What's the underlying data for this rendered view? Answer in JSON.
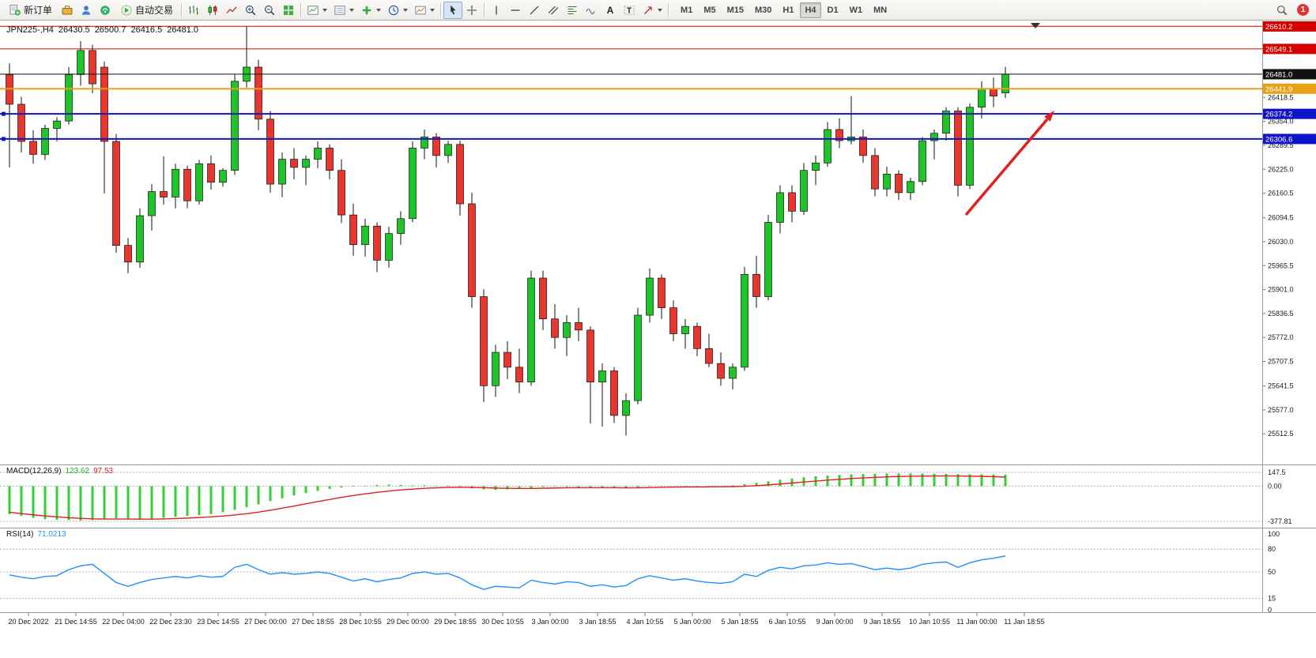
{
  "toolbar": {
    "new_order_label": "新订单",
    "auto_trading_label": "自动交易",
    "notification_count": "1",
    "timeframes": [
      "M1",
      "M5",
      "M15",
      "M30",
      "H1",
      "H4",
      "D1",
      "W1",
      "MN"
    ],
    "active_timeframe": "H4",
    "items": [
      {
        "kind": "text",
        "name": "new-order-button",
        "icon": "new-order",
        "label": "新订单"
      },
      {
        "kind": "icon",
        "name": "market-watch-button",
        "icon": "market-watch"
      },
      {
        "kind": "icon",
        "name": "community-button",
        "icon": "community"
      },
      {
        "kind": "icon",
        "name": "sounds-button",
        "icon": "sounds"
      },
      {
        "kind": "text",
        "name": "auto-trading-button",
        "icon": "autotrade",
        "label": "自动交易"
      },
      {
        "kind": "sep"
      },
      {
        "kind": "icon",
        "name": "bar-chart-mode-button",
        "icon": "bars"
      },
      {
        "kind": "icon",
        "name": "candle-chart-mode-button",
        "icon": "candles"
      },
      {
        "kind": "icon",
        "name": "line-chart-mode-button",
        "icon": "line"
      },
      {
        "kind": "icon",
        "name": "zoom-in-button",
        "icon": "zoom-in"
      },
      {
        "kind": "icon",
        "name": "zoom-out-button",
        "icon": "zoom-out"
      },
      {
        "kind": "icon",
        "name": "tile-windows-button",
        "icon": "tile"
      },
      {
        "kind": "sep"
      },
      {
        "kind": "icon",
        "name": "chart-list-button",
        "icon": "chart-a",
        "caret": true
      },
      {
        "kind": "icon",
        "name": "chart-grid-button",
        "icon": "chart-b",
        "caret": true
      },
      {
        "kind": "icon",
        "name": "add-indicator-button",
        "icon": "plus",
        "caret": true
      },
      {
        "kind": "icon",
        "name": "periods-button",
        "icon": "clock",
        "caret": true
      },
      {
        "kind": "icon",
        "name": "chart-snapshot-button",
        "icon": "snapshot",
        "caret": true
      },
      {
        "kind": "sep"
      },
      {
        "kind": "icon",
        "name": "cursor-button",
        "icon": "cursor",
        "active": true
      },
      {
        "kind": "icon",
        "name": "crosshair-button",
        "icon": "crosshair"
      },
      {
        "kind": "sep"
      },
      {
        "kind": "icon",
        "name": "vertical-line-button",
        "icon": "vline"
      },
      {
        "kind": "icon",
        "name": "horizontal-line-button",
        "icon": "hline"
      },
      {
        "kind": "icon",
        "name": "trendline-button",
        "icon": "trend"
      },
      {
        "kind": "icon",
        "name": "equidistant-channel-button",
        "icon": "channel"
      },
      {
        "kind": "icon",
        "name": "fibonacci-button",
        "icon": "fibo"
      },
      {
        "kind": "icon",
        "name": "waves-button",
        "icon": "waves"
      },
      {
        "kind": "icon",
        "name": "text-tool-button",
        "icon": "textA"
      },
      {
        "kind": "icon",
        "name": "label-tool-button",
        "icon": "labelT"
      },
      {
        "kind": "icon",
        "name": "arrows-tool-button",
        "icon": "arrowobj",
        "caret": true
      },
      {
        "kind": "sep"
      }
    ]
  },
  "chart": {
    "symbol_title": "JPN225-,H4",
    "ohlc": {
      "open": "26430.5",
      "high": "26500.7",
      "low": "26416.5",
      "close": "26481.0"
    },
    "arrow_color": "#e02020",
    "levels": [
      {
        "label": "26610.2",
        "price": 26610.2,
        "color": "#d40000",
        "width": 1,
        "handles": false
      },
      {
        "label": "26549.1",
        "price": 26549.1,
        "color": "#d40000",
        "width": 1,
        "handles": false
      },
      {
        "label": "26481.0",
        "price": 26481.0,
        "color": "#111111",
        "width": 1,
        "handles": false
      },
      {
        "label": "26441.9",
        "price": 26441.9,
        "color": "#e8a017",
        "width": 2,
        "handles": false
      },
      {
        "label": "26374.2",
        "price": 26374.2,
        "color": "#0f14c8",
        "width": 2,
        "handles": true
      },
      {
        "label": "26306.6",
        "price": 26306.6,
        "color": "#0f14c8",
        "width": 2,
        "handles": true
      }
    ]
  },
  "macd_panel": {
    "title": "MACD(12,26,9)",
    "value_main": "123.62",
    "value_signal": "97.53"
  },
  "rsi_panel": {
    "title": "RSI(14)",
    "value": "71.0213"
  },
  "chart_data": {
    "type": "candlestick",
    "symbol": "JPN225-",
    "timeframe": "H4",
    "ylim": [
      25430,
      26617
    ],
    "y_ticks": [
      "26418.5",
      "26354.0",
      "26289.5",
      "26225.0",
      "26160.5",
      "26094.5",
      "26030.0",
      "25965.5",
      "25901.0",
      "25836.5",
      "25772.0",
      "25707.5",
      "25641.5",
      "25577.0",
      "25512.5"
    ],
    "x_labels": [
      "20 Dec 2022",
      "21 Dec 14:55",
      "22 Dec 04:00",
      "22 Dec 23:30",
      "23 Dec 14:55",
      "27 Dec 00:00",
      "27 Dec 18:55",
      "28 Dec 10:55",
      "29 Dec 00:00",
      "29 Dec 18:55",
      "30 Dec 10:55",
      "3 Jan 00:00",
      "3 Jan 18:55",
      "4 Jan 10:55",
      "5 Jan 00:00",
      "5 Jan 18:55",
      "6 Jan 10:55",
      "9 Jan 00:00",
      "9 Jan 18:55",
      "10 Jan 10:55",
      "11 Jan 00:00",
      "11 Jan 18:55"
    ],
    "candles": [
      [
        26480,
        26510,
        26230,
        26400
      ],
      [
        26400,
        26420,
        26270,
        26300
      ],
      [
        26300,
        26330,
        26240,
        26265
      ],
      [
        26265,
        26345,
        26250,
        26335
      ],
      [
        26335,
        26365,
        26300,
        26355
      ],
      [
        26355,
        26500,
        26345,
        26480
      ],
      [
        26480,
        26570,
        26450,
        26545
      ],
      [
        26545,
        26560,
        26430,
        26455
      ],
      [
        26500,
        26515,
        26160,
        26300
      ],
      [
        26300,
        26320,
        26000,
        26020
      ],
      [
        26020,
        26040,
        25945,
        25975
      ],
      [
        25975,
        26120,
        25960,
        26100
      ],
      [
        26100,
        26185,
        26060,
        26165
      ],
      [
        26165,
        26260,
        26130,
        26150
      ],
      [
        26150,
        26240,
        26120,
        26225
      ],
      [
        26225,
        26235,
        26120,
        26140
      ],
      [
        26140,
        26250,
        26130,
        26240
      ],
      [
        26240,
        26262,
        26170,
        26190
      ],
      [
        26190,
        26228,
        26178,
        26222
      ],
      [
        26222,
        26480,
        26210,
        26462
      ],
      [
        26462,
        26610,
        26445,
        26500
      ],
      [
        26500,
        26520,
        26330,
        26360
      ],
      [
        26360,
        26382,
        26162,
        26185
      ],
      [
        26185,
        26270,
        26150,
        26252
      ],
      [
        26252,
        26282,
        26198,
        26230
      ],
      [
        26230,
        26262,
        26182,
        26252
      ],
      [
        26252,
        26300,
        26228,
        26282
      ],
      [
        26282,
        26292,
        26198,
        26222
      ],
      [
        26222,
        26252,
        26080,
        26102
      ],
      [
        26102,
        26132,
        25992,
        26022
      ],
      [
        26022,
        26092,
        25990,
        26072
      ],
      [
        26072,
        26082,
        25948,
        25980
      ],
      [
        25980,
        26070,
        25960,
        26052
      ],
      [
        26052,
        26112,
        26022,
        26092
      ],
      [
        26092,
        26300,
        26082,
        26282
      ],
      [
        26282,
        26332,
        26252,
        26312
      ],
      [
        26312,
        26322,
        26230,
        26262
      ],
      [
        26262,
        26302,
        26242,
        26292
      ],
      [
        26292,
        26302,
        26100,
        26132
      ],
      [
        26132,
        26162,
        25852,
        25882
      ],
      [
        25882,
        25902,
        25598,
        25642
      ],
      [
        25642,
        25752,
        25612,
        25732
      ],
      [
        25732,
        25762,
        25660,
        25692
      ],
      [
        25692,
        25742,
        25622,
        25652
      ],
      [
        25652,
        25952,
        25642,
        25932
      ],
      [
        25932,
        25952,
        25792,
        25822
      ],
      [
        25822,
        25862,
        25742,
        25772
      ],
      [
        25772,
        25832,
        25722,
        25812
      ],
      [
        25812,
        25852,
        25762,
        25792
      ],
      [
        25792,
        25802,
        25540,
        25652
      ],
      [
        25652,
        25702,
        25532,
        25682
      ],
      [
        25682,
        25692,
        25542,
        25562
      ],
      [
        25562,
        25622,
        25508,
        25602
      ],
      [
        25602,
        25852,
        25592,
        25832
      ],
      [
        25832,
        25958,
        25812,
        25932
      ],
      [
        25932,
        25942,
        25822,
        25852
      ],
      [
        25852,
        25872,
        25762,
        25782
      ],
      [
        25782,
        25822,
        25742,
        25802
      ],
      [
        25802,
        25812,
        25722,
        25742
      ],
      [
        25742,
        25782,
        25692,
        25702
      ],
      [
        25702,
        25732,
        25642,
        25662
      ],
      [
        25662,
        25702,
        25632,
        25692
      ],
      [
        25692,
        25962,
        25682,
        25942
      ],
      [
        25942,
        25992,
        25852,
        25882
      ],
      [
        25882,
        26102,
        25872,
        26082
      ],
      [
        26082,
        26182,
        26052,
        26162
      ],
      [
        26162,
        26182,
        26082,
        26112
      ],
      [
        26112,
        26242,
        26102,
        26222
      ],
      [
        26222,
        26262,
        26182,
        26242
      ],
      [
        26242,
        26352,
        26232,
        26332
      ],
      [
        26332,
        26362,
        26282,
        26302
      ],
      [
        26302,
        26422,
        26292,
        26312
      ],
      [
        26312,
        26332,
        26242,
        26262
      ],
      [
        26262,
        26282,
        26152,
        26172
      ],
      [
        26172,
        26232,
        26152,
        26212
      ],
      [
        26212,
        26222,
        26142,
        26162
      ],
      [
        26162,
        26202,
        26142,
        26192
      ],
      [
        26192,
        26312,
        26182,
        26302
      ],
      [
        26302,
        26332,
        26252,
        26322
      ],
      [
        26322,
        26392,
        26302,
        26382
      ],
      [
        26382,
        26392,
        26152,
        26182
      ],
      [
        26182,
        26402,
        26172,
        26392
      ],
      [
        26392,
        26462,
        26362,
        26442
      ],
      [
        26442,
        26472,
        26392,
        26422
      ],
      [
        26430.5,
        26500.7,
        26416.5,
        26481.0
      ]
    ],
    "indicators": [
      {
        "type": "macd",
        "params": "12,26,9",
        "main": 123.62,
        "signal_value": 97.53,
        "range": [
          -377.81,
          147.5
        ],
        "scale": [
          {
            "v": 147.5,
            "label": "147.5"
          },
          {
            "v": 0,
            "label": "0.00"
          },
          {
            "v": -377.81,
            "label": "-377.81"
          }
        ],
        "histogram": [
          -300,
          -320,
          -340,
          -355,
          -360,
          -365,
          -370,
          -365,
          -350,
          -345,
          -355,
          -360,
          -350,
          -340,
          -330,
          -320,
          -310,
          -300,
          -280,
          -255,
          -225,
          -195,
          -160,
          -130,
          -100,
          -75,
          -50,
          -30,
          -15,
          -5,
          5,
          12,
          15,
          12,
          8,
          10,
          5,
          -5,
          -15,
          -25,
          -35,
          -40,
          -35,
          -30,
          -20,
          -10,
          -5,
          -10,
          -15,
          -20,
          -15,
          -20,
          -25,
          -15,
          -5,
          5,
          0,
          -5,
          -10,
          -5,
          0,
          8,
          20,
          35,
          52,
          68,
          82,
          95,
          105,
          113,
          120,
          126,
          130,
          133,
          135,
          136,
          136,
          135,
          133,
          131,
          129,
          127,
          126,
          125,
          123.62
        ],
        "signal": [
          -280,
          -295,
          -308,
          -320,
          -330,
          -339,
          -346,
          -351,
          -353,
          -353,
          -353,
          -354,
          -354,
          -352,
          -348,
          -343,
          -337,
          -330,
          -321,
          -310,
          -296,
          -279,
          -259,
          -237,
          -214,
          -190,
          -166,
          -143,
          -121,
          -101,
          -83,
          -67,
          -53,
          -41,
          -32,
          -24,
          -18,
          -14,
          -13,
          -14,
          -17,
          -21,
          -24,
          -25,
          -25,
          -23,
          -20,
          -18,
          -17,
          -17,
          -17,
          -17,
          -18,
          -18,
          -16,
          -13,
          -10,
          -9,
          -9,
          -8,
          -7,
          -5,
          -1,
          5,
          13,
          23,
          33,
          44,
          54,
          64,
          73,
          81,
          88,
          94,
          99,
          103,
          106,
          108,
          109,
          110,
          109,
          107,
          105,
          101,
          97.53
        ]
      },
      {
        "type": "rsi",
        "params": "14",
        "current": 71.0213,
        "range": [
          0,
          100
        ],
        "dashed_levels": [
          80,
          50,
          15
        ],
        "scale": [
          {
            "v": 100,
            "label": "100"
          },
          {
            "v": 80,
            "label": "80"
          },
          {
            "v": 50,
            "label": "50"
          },
          {
            "v": 15,
            "label": "15"
          },
          {
            "v": 0,
            "label": "0"
          }
        ],
        "values": [
          46,
          43,
          41,
          44,
          45,
          53,
          58,
          60,
          48,
          36,
          31,
          36,
          40,
          42,
          44,
          42,
          45,
          43,
          44,
          56,
          60,
          53,
          47,
          49,
          47,
          48,
          50,
          48,
          43,
          38,
          41,
          37,
          40,
          42,
          48,
          50,
          47,
          48,
          42,
          33,
          27,
          31,
          30,
          29,
          39,
          36,
          34,
          37,
          36,
          31,
          33,
          30,
          32,
          41,
          45,
          42,
          39,
          41,
          38,
          36,
          35,
          37,
          47,
          44,
          52,
          56,
          54,
          58,
          59,
          62,
          60,
          61,
          57,
          53,
          55,
          53,
          55,
          60,
          62,
          63,
          56,
          62,
          66,
          68,
          71.02
        ]
      }
    ]
  }
}
